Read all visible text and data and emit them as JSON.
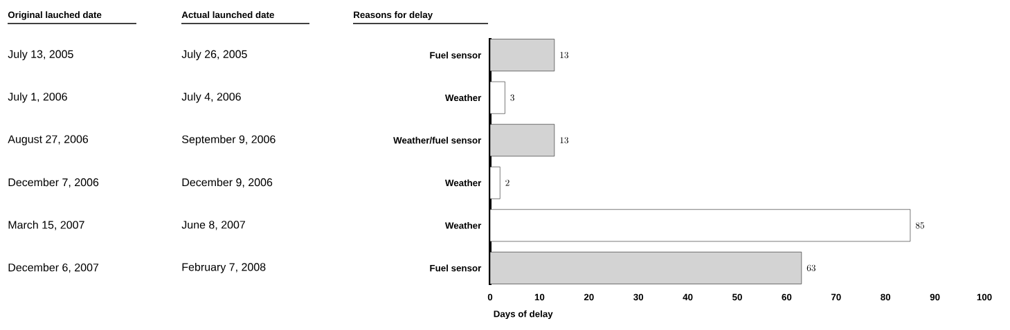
{
  "chart_data": {
    "type": "bar",
    "orientation": "horizontal",
    "categories": [
      "Fuel sensor",
      "Weather",
      "Weather/fuel sensor",
      "Weather",
      "Weather",
      "Fuel sensor"
    ],
    "values": [
      13,
      3,
      13,
      2,
      85,
      63
    ],
    "colors": [
      "#d3d3d3",
      "#ffffff",
      "#d3d3d3",
      "#ffffff",
      "#ffffff",
      "#d3d3d3"
    ],
    "xlim": [
      0,
      100
    ],
    "xticks": [
      0,
      10,
      20,
      30,
      40,
      50,
      60,
      70,
      80,
      90,
      100
    ],
    "xlabel": "Days of delay",
    "ylabel": "Reasons for delay",
    "data_labels": true,
    "annotations": [
      "Original lauched date",
      "Actual launched date",
      "July 13, 2005",
      "July 26, 2005",
      "July 1, 2006",
      "July 4, 2006",
      "August 27, 2006",
      "September 9, 2006",
      "December 7, 2006",
      "December 9, 2006",
      "March 15, 2007",
      "June 8, 2007",
      "December 6, 2007",
      "February 7, 2008"
    ]
  }
}
